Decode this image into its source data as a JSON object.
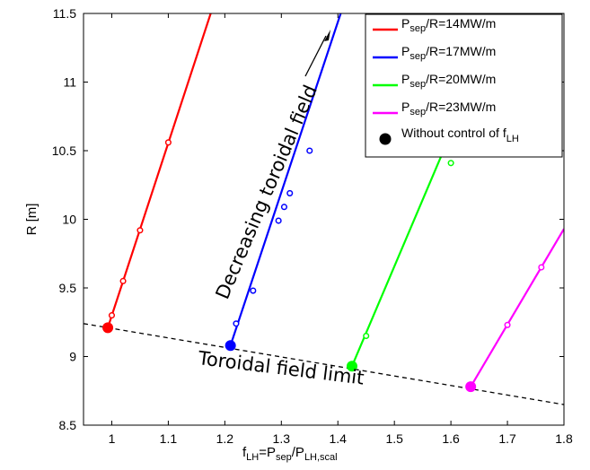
{
  "chart_data": {
    "type": "line",
    "xlabel": {
      "main": "f",
      "sub": "LH",
      "rest": "=P",
      "sub2": "sep",
      "rest2": "/P",
      "sub3": "LH,scal"
    },
    "ylabel": "R [m]",
    "xlim": [
      0.95,
      1.8
    ],
    "ylim": [
      8.5,
      11.5
    ],
    "xticks": [
      1,
      1.1,
      1.2,
      1.3,
      1.4,
      1.5,
      1.6,
      1.7,
      1.8
    ],
    "xtick_labels": [
      "1",
      "1.1",
      "1.2",
      "1.3",
      "1.4",
      "1.5",
      "1.6",
      "1.7",
      "1.8"
    ],
    "yticks": [
      8.5,
      9,
      9.5,
      10,
      10.5,
      11,
      11.5
    ],
    "ytick_labels": [
      "8.5",
      "9",
      "9.5",
      "10",
      "10.5",
      "11",
      "11.5"
    ],
    "grid": false,
    "legend_position": "top-right",
    "series": [
      {
        "legend": {
          "p": "P",
          "sub": "sep",
          "rest": "/R=14MW/m"
        },
        "color": "#ff0000",
        "line": [
          [
            0.993,
            9.21
          ],
          [
            1.175,
            11.5
          ]
        ],
        "markers": [
          [
            1.0,
            9.3
          ],
          [
            1.02,
            9.55
          ],
          [
            1.05,
            9.92
          ],
          [
            1.1,
            10.56
          ]
        ],
        "start": [
          0.993,
          9.21
        ]
      },
      {
        "legend": {
          "p": "P",
          "sub": "sep",
          "rest": "/R=17MW/m"
        },
        "color": "#0000ff",
        "line": [
          [
            1.21,
            9.08
          ],
          [
            1.405,
            11.5
          ]
        ],
        "markers": [
          [
            1.22,
            9.24
          ],
          [
            1.25,
            9.48
          ],
          [
            1.295,
            9.99
          ],
          [
            1.305,
            10.09
          ],
          [
            1.315,
            10.19
          ],
          [
            1.35,
            10.5
          ]
        ],
        "start": [
          1.21,
          9.08
        ]
      },
      {
        "legend": {
          "p": "P",
          "sub": "sep",
          "rest": "/R=20MW/m"
        },
        "color": "#00ff00",
        "line": [
          [
            1.425,
            8.93
          ],
          [
            1.69,
            11.5
          ]
        ],
        "markers": [
          [
            1.45,
            9.15
          ],
          [
            1.6,
            10.41
          ]
        ],
        "start": [
          1.425,
          8.93
        ]
      },
      {
        "legend": {
          "p": "P",
          "sub": "sep",
          "rest": "/R=23MW/m"
        },
        "color": "#ff00ff",
        "line": [
          [
            1.635,
            8.78
          ],
          [
            1.8,
            9.93
          ]
        ],
        "markers": [
          [
            1.7,
            9.23
          ],
          [
            1.76,
            9.65
          ]
        ],
        "start": [
          1.635,
          8.78
        ]
      }
    ],
    "limit_line": {
      "color": "#000000",
      "dash": "dashed",
      "points": [
        [
          0.95,
          9.24
        ],
        [
          1.8,
          8.65
        ]
      ]
    },
    "legend_extra": {
      "main": "Without control of f",
      "sub": "LH"
    },
    "annotations": {
      "decreasing": "Decreasing toroidal field",
      "limit": "Toroidal field limit"
    }
  }
}
